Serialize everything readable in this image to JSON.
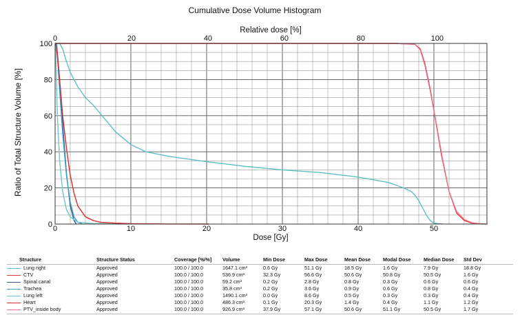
{
  "chart_data": {
    "type": "line",
    "title": "Cumulative Dose Volume Histogram",
    "xlabel": "Dose [Gy]",
    "ylabel": "Ratio of Total Structure Volume [%]",
    "x2label": "Relative dose [%]",
    "xlim": [
      0,
      57
    ],
    "ylim": [
      0,
      100
    ],
    "x2lim": [
      0,
      113
    ],
    "x_ticks": [
      "0",
      "10",
      "20",
      "30",
      "40",
      "50"
    ],
    "x2_ticks": [
      "0",
      "20",
      "40",
      "60",
      "80",
      "100"
    ],
    "y_ticks": [
      "0",
      "20",
      "40",
      "60",
      "80",
      "100"
    ],
    "grid": true,
    "series": [
      {
        "name": "Lung right",
        "color": "#5bbfc4",
        "x": [
          0,
          0.6,
          1,
          1.5,
          2,
          3,
          4,
          5,
          6,
          7,
          8,
          10,
          12,
          15,
          20,
          25,
          30,
          35,
          40,
          44,
          46,
          47,
          47.5,
          48,
          48.5,
          49,
          49.5,
          50,
          51.1
        ],
        "y": [
          100,
          100,
          97,
          90,
          84,
          76,
          70,
          66,
          61,
          56,
          51,
          44,
          40,
          37.5,
          34.5,
          32,
          30,
          28.5,
          26,
          23,
          20,
          18,
          16,
          13,
          9,
          5,
          2,
          0.5,
          0
        ]
      },
      {
        "name": "CTV",
        "color": "#e23b3b",
        "x": [
          0,
          32.3,
          45,
          47.5,
          48.2,
          48.8,
          49.5,
          50.2,
          51,
          52,
          53,
          54,
          55,
          56.6
        ],
        "y": [
          100,
          100,
          100,
          99.5,
          97,
          89,
          75,
          58,
          38,
          18,
          6,
          2,
          0.5,
          0
        ]
      },
      {
        "name": "Spinal canal",
        "color": "#2b5f8e",
        "x": [
          0,
          0.2,
          0.5,
          1,
          1.5,
          2,
          2.5,
          2.8
        ],
        "y": [
          100,
          100,
          85,
          55,
          28,
          10,
          2,
          0
        ]
      },
      {
        "name": "Trachea",
        "color": "#3ba0c8",
        "x": [
          0,
          0.2,
          0.5,
          1,
          1.5,
          2,
          2.5,
          3,
          3.6
        ],
        "y": [
          100,
          100,
          80,
          50,
          27,
          12,
          4,
          1,
          0
        ]
      },
      {
        "name": "Lung left",
        "color": "#72c2c9",
        "x": [
          0,
          0.05,
          0.3,
          0.6,
          1,
          1.5,
          2,
          3,
          5,
          8.6
        ],
        "y": [
          100,
          100,
          60,
          35,
          18,
          8,
          4,
          1,
          0.3,
          0
        ]
      },
      {
        "name": "Heart",
        "color": "#d92b2b",
        "x": [
          0,
          0.1,
          0.5,
          1,
          1.5,
          2,
          2.5,
          3,
          4,
          5,
          6,
          8,
          10,
          15,
          20.3
        ],
        "y": [
          100,
          100,
          85,
          60,
          42,
          27,
          17,
          10,
          4,
          2,
          1,
          0.5,
          0.2,
          0.05,
          0
        ]
      },
      {
        "name": "PTV_inside body",
        "color": "#e8738e",
        "x": [
          0,
          37.9,
          45,
          47.5,
          48.2,
          48.8,
          49.5,
          50.3,
          51.1,
          52,
          53,
          54,
          55,
          56,
          57.1
        ],
        "y": [
          100,
          100,
          100,
          99.5,
          96.5,
          88,
          74,
          56,
          37,
          18,
          7,
          2.5,
          0.8,
          0.2,
          0
        ]
      }
    ]
  },
  "legend": {
    "headers": {
      "structure": "Structure",
      "status": "Structure Status",
      "coverage": "Coverage [%/%]",
      "volume": "Volume",
      "min": "Min Dose",
      "max": "Max Dose",
      "mean": "Mean Dose",
      "modal": "Modal Dose",
      "median": "Median Dose",
      "std": "Std Dev"
    },
    "rows": [
      {
        "structure": "Lung right",
        "status": "Approved",
        "coverage": "100.0 / 100.0",
        "volume": "1647.1 cm³",
        "min": "0.6 Gy",
        "max": "51.1 Gy",
        "mean": "18.5 Gy",
        "modal": "1.6 Gy",
        "median": "7.9 Gy",
        "std": "18.8 Gy"
      },
      {
        "structure": "CTV",
        "status": "Approved",
        "coverage": "100.0 / 100.0",
        "volume": "536.9 cm³",
        "min": "32.3 Gy",
        "max": "56.6 Gy",
        "mean": "50.6 Gy",
        "modal": "50.8 Gy",
        "median": "50.5 Gy",
        "std": "1.6 Gy"
      },
      {
        "structure": "Spinal canal",
        "status": "Approved",
        "coverage": "100.0 / 100.0",
        "volume": "59.2 cm³",
        "min": "0.2 Gy",
        "max": "2.8 Gy",
        "mean": "0.8 Gy",
        "modal": "0.3 Gy",
        "median": "0.6 Gy",
        "std": "0.6 Gy"
      },
      {
        "structure": "Trachea",
        "status": "Approved",
        "coverage": "100.0 / 100.0",
        "volume": "35.8 cm³",
        "min": "0.2 Gy",
        "max": "3.6 Gy",
        "mean": "0.9 Gy",
        "modal": "0.6 Gy",
        "median": "0.8 Gy",
        "std": "0.4 Gy"
      },
      {
        "structure": "Lung left",
        "status": "Approved",
        "coverage": "100.0 / 100.0",
        "volume": "1490.1 cm³",
        "min": "0.0 Gy",
        "max": "8.6 Gy",
        "mean": "0.5 Gy",
        "modal": "0.3 Gy",
        "median": "0.3 Gy",
        "std": "0.4 Gy"
      },
      {
        "structure": "Heart",
        "status": "Approved",
        "coverage": "100.0 / 100.0",
        "volume": "486.3 cm³",
        "min": "0.1 Gy",
        "max": "20.3 Gy",
        "mean": "1.4 Gy",
        "modal": "0.4 Gy",
        "median": "1.1 Gy",
        "std": "1.2 Gy"
      },
      {
        "structure": "PTV_inside body",
        "status": "Approved",
        "coverage": "100.0 / 100.0",
        "volume": "926.9 cm³",
        "min": "37.9 Gy",
        "max": "57.1 Gy",
        "mean": "50.6 Gy",
        "modal": "51.1 Gy",
        "median": "50.5 Gy",
        "std": "1.7 Gy"
      }
    ]
  }
}
